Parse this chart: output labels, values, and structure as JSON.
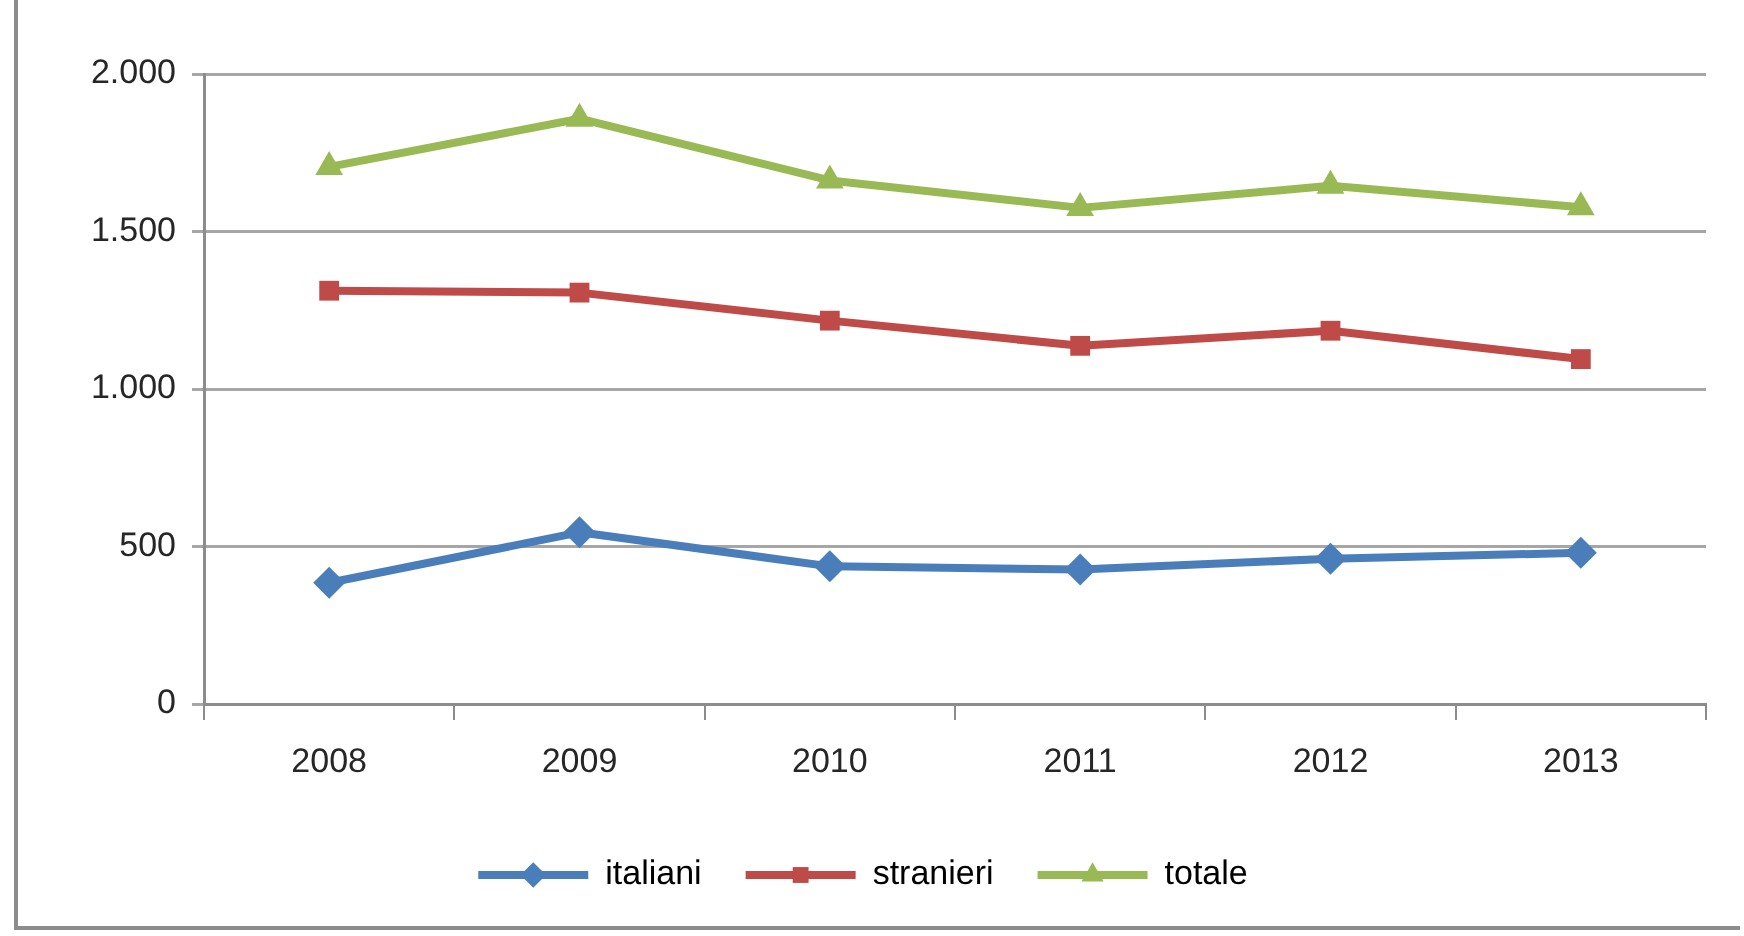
{
  "chart_data": {
    "type": "line",
    "categories": [
      "2008",
      "2009",
      "2010",
      "2011",
      "2012",
      "2013"
    ],
    "series": [
      {
        "name": "italiani",
        "color": "#4a7ebb",
        "marker": "diamond",
        "values": [
          385,
          545,
          437,
          427,
          461,
          480
        ]
      },
      {
        "name": "stranieri",
        "color": "#be4b48",
        "marker": "square",
        "values": [
          1312,
          1306,
          1217,
          1137,
          1185,
          1095
        ]
      },
      {
        "name": "totale",
        "color": "#98b954",
        "marker": "triangle",
        "values": [
          1705,
          1858,
          1662,
          1575,
          1645,
          1577
        ]
      }
    ],
    "ylim": [
      0,
      2000
    ],
    "yticks": [
      0,
      500,
      {
        "value": 1000,
        "label": "1.000"
      },
      {
        "value": 1500,
        "label": "1.500"
      },
      {
        "value": 2000,
        "label": "2.000"
      }
    ],
    "grid": "y",
    "legend": "bottom",
    "line_style": "solid"
  }
}
